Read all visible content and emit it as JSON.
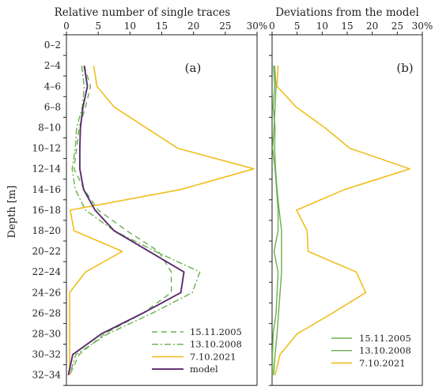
{
  "chart_data": [
    {
      "type": "line",
      "panel_label": "(a)",
      "title": "Relative number of single traces",
      "ylabel": "Depth [m]",
      "categories": [
        "0–2",
        "2–4",
        "4–6",
        "6–8",
        "8–10",
        "10–12",
        "12–14",
        "14–16",
        "16–18",
        "18–20",
        "20–22",
        "22–24",
        "24–26",
        "26–28",
        "28–30",
        "30–32",
        "32–34"
      ],
      "xlim": [
        0,
        30
      ],
      "xticks": [
        0,
        5,
        10,
        15,
        20,
        25,
        30
      ],
      "xtick_labels": [
        "0",
        "5",
        "10",
        "15",
        "20",
        "25",
        "30%"
      ],
      "legend_position": "bottom-right",
      "grid": false,
      "series": [
        {
          "name": "15.11.2005",
          "color": "#6ab04c",
          "dash": "7,5",
          "width": 1.4,
          "values": [
            null,
            2.8,
            3.8,
            3.0,
            2.0,
            1.6,
            1.2,
            2.8,
            5.0,
            9.5,
            14.5,
            16.5,
            16.5,
            12.0,
            6.0,
            2.0,
            0.5
          ]
        },
        {
          "name": "13.10.2008",
          "color": "#6ab04c",
          "dash": "8,3,2,3",
          "width": 1.4,
          "values": [
            null,
            2.4,
            2.8,
            2.5,
            1.6,
            1.4,
            0.9,
            1.4,
            3.0,
            7.5,
            14.0,
            21.0,
            19.8,
            13.5,
            6.5,
            1.5,
            0.5
          ]
        },
        {
          "name": "7.10.2021",
          "color": "#f0be1d",
          "dash": "",
          "width": 1.6,
          "values": [
            null,
            4.3,
            4.8,
            7.5,
            12.5,
            17.5,
            29.5,
            18.0,
            0.6,
            1.2,
            8.8,
            3.0,
            0.5,
            0.5,
            0.5,
            0.5,
            0.5
          ]
        },
        {
          "name": "model",
          "color": "#5b2a6e",
          "dash": "",
          "width": 1.9,
          "values": [
            null,
            2.8,
            3.3,
            2.6,
            2.2,
            2.1,
            2.1,
            2.7,
            4.5,
            7.5,
            13.0,
            18.5,
            18.0,
            12.0,
            5.5,
            1.0,
            0.3
          ]
        }
      ]
    },
    {
      "type": "line",
      "panel_label": "(b)",
      "title": "Deviations from the model",
      "ylabel": "",
      "categories": [
        "0–2",
        "2–4",
        "4–6",
        "6–8",
        "8–10",
        "10–12",
        "12–14",
        "14–16",
        "16–18",
        "18–20",
        "20–22",
        "22–24",
        "24–26",
        "26–28",
        "28–30",
        "30–32",
        "32–34"
      ],
      "xlim": [
        0,
        30
      ],
      "xticks": [
        0,
        5,
        10,
        15,
        20,
        25,
        30
      ],
      "xtick_labels": [
        "0",
        "5",
        "10",
        "15",
        "20",
        "25",
        "30%"
      ],
      "legend_position": "bottom-right",
      "grid": false,
      "series": [
        {
          "name": "15.11.2005",
          "color": "#6ab04c",
          "dash": "",
          "width": 1.4,
          "values": [
            null,
            0.5,
            0.8,
            0.6,
            0.4,
            0.1,
            0.6,
            0.9,
            1.2,
            1.2,
            0.4,
            1.2,
            1.0,
            0.8,
            0.2,
            0.1,
            0.1
          ]
        },
        {
          "name": "13.10.2008",
          "color": "#6ab04c",
          "dash": "",
          "width": 1.4,
          "values": [
            null,
            0.3,
            0.5,
            0.2,
            0.6,
            0.5,
            0.7,
            1.0,
            1.4,
            1.9,
            1.9,
            1.9,
            1.6,
            1.3,
            1.0,
            0.6,
            0.3
          ]
        },
        {
          "name": "7.10.2021",
          "color": "#f0be1d",
          "dash": "",
          "width": 1.6,
          "values": [
            null,
            1.2,
            1.0,
            4.8,
            10.5,
            15.5,
            27.5,
            14.5,
            4.9,
            7.0,
            7.2,
            16.8,
            18.7,
            12.0,
            5.0,
            1.6,
            0.6
          ]
        }
      ]
    }
  ]
}
